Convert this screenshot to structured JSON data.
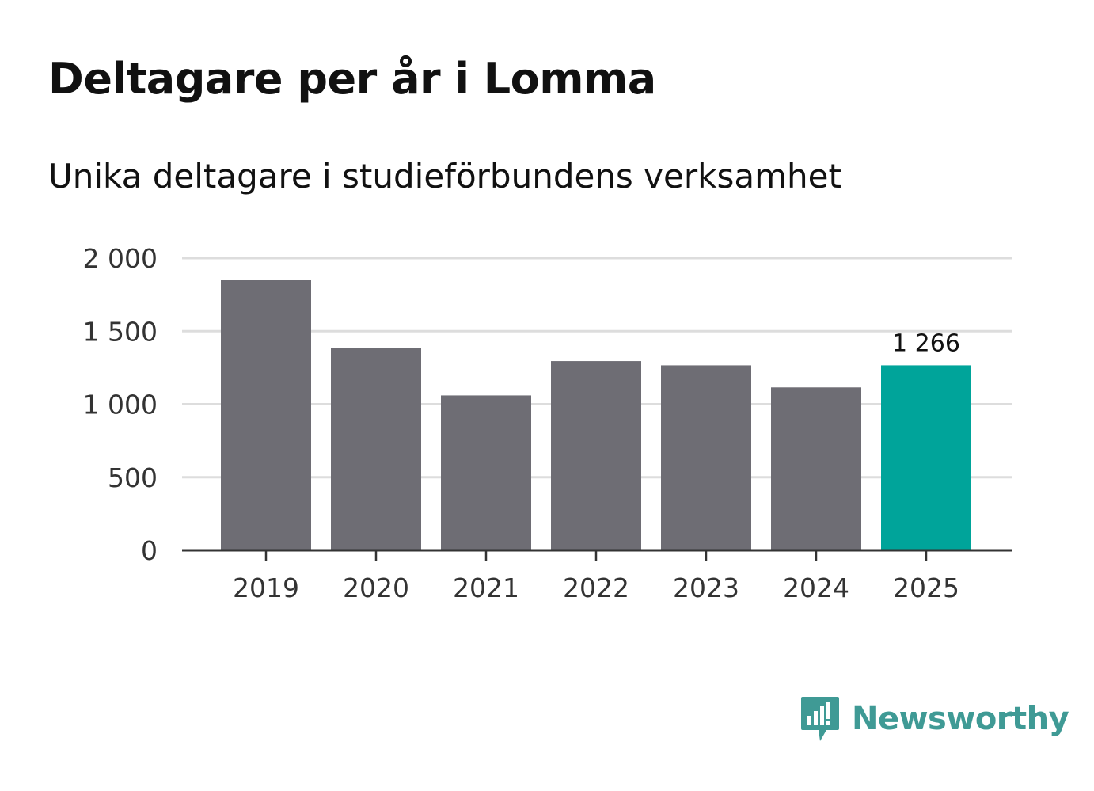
{
  "title": "Deltagare per år i Lomma",
  "subtitle": "Unika deltagare i studieförbundens verksamhet",
  "brand": {
    "name": "Newsworthy",
    "icon": "newsworthy-logo-icon",
    "color": "#3f9a95"
  },
  "colors": {
    "bar": "#6e6d74",
    "highlight": "#00a49a",
    "grid": "#dddddd",
    "axis": "#333333"
  },
  "chart_data": {
    "type": "bar",
    "title": "Deltagare per år i Lomma",
    "subtitle": "Unika deltagare i studieförbundens verksamhet",
    "categories": [
      "2019",
      "2020",
      "2021",
      "2022",
      "2023",
      "2024",
      "2025"
    ],
    "values": [
      1850,
      1385,
      1060,
      1295,
      1266,
      1115,
      1266
    ],
    "highlight_index": 6,
    "data_labels": [
      {
        "index": 6,
        "text": "1 266"
      }
    ],
    "ylim": [
      0,
      2000
    ],
    "yticks": [
      0,
      500,
      1000,
      1500,
      2000
    ],
    "ytick_labels": [
      "0",
      "500",
      "1 000",
      "1 500",
      "2 000"
    ],
    "xlabel": "",
    "ylabel": "",
    "grid": true,
    "legend": "none"
  }
}
